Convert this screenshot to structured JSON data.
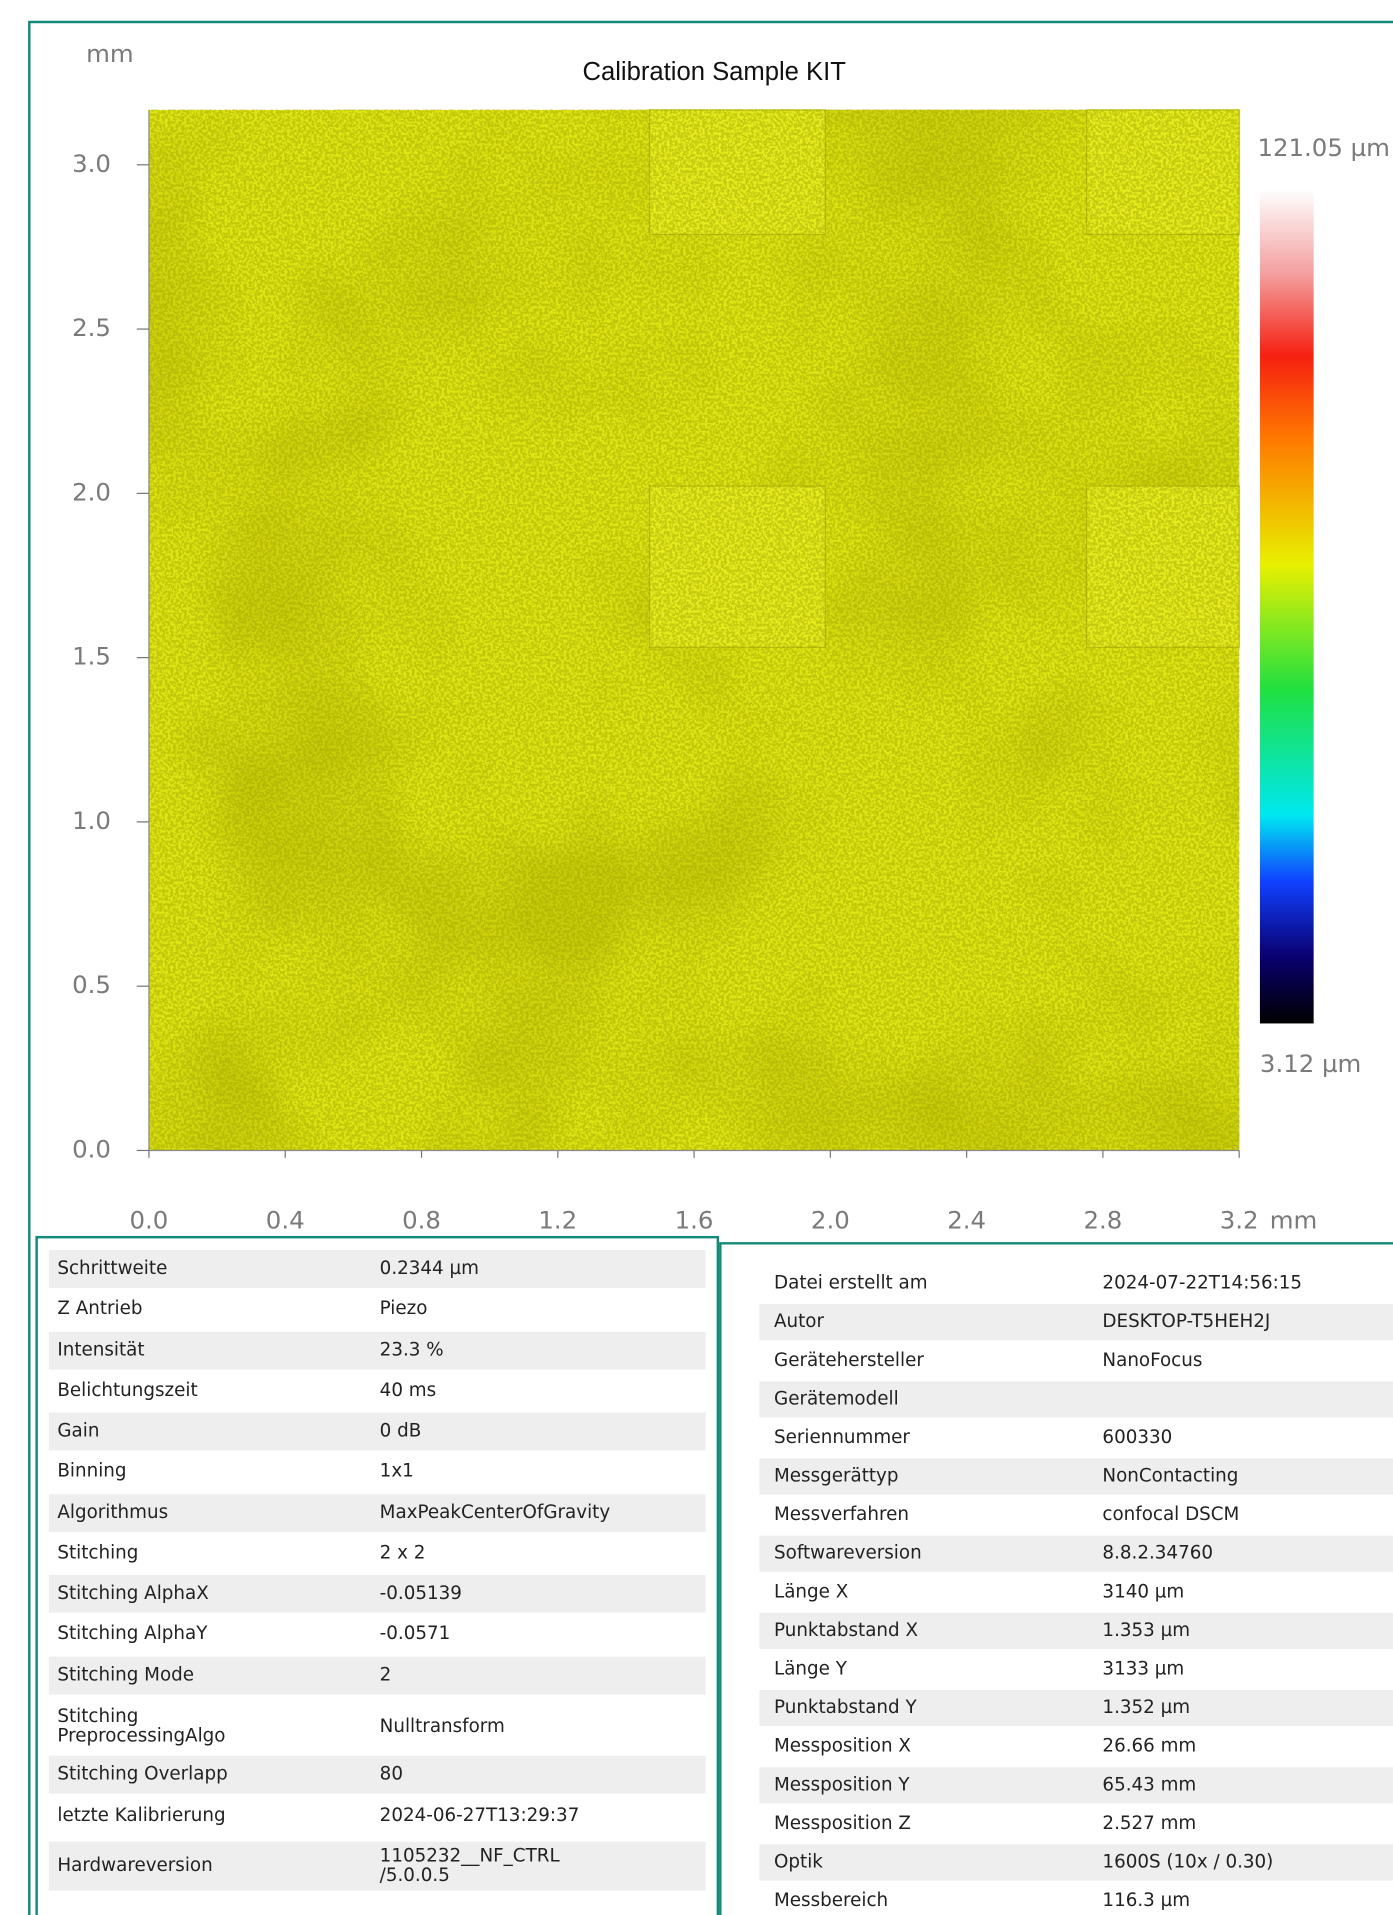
{
  "plot": {
    "title": "Calibration Sample KIT",
    "y_unit": "mm",
    "x_unit": "mm",
    "xlim": [
      0,
      3.2
    ],
    "ylim": [
      0,
      3.167
    ],
    "xticks": [
      {
        "value": 0,
        "label": "0.0"
      },
      {
        "value": 0.4,
        "label": "0.4"
      },
      {
        "value": 0.8,
        "label": "0.8"
      },
      {
        "value": 1.2,
        "label": "1.2"
      },
      {
        "value": 1.6,
        "label": "1.6"
      },
      {
        "value": 2,
        "label": "2.0"
      },
      {
        "value": 2.4,
        "label": "2.4"
      },
      {
        "value": 2.8,
        "label": "2.8"
      },
      {
        "value": 3.2,
        "label": "3.2"
      }
    ],
    "yticks": [
      {
        "value": 0,
        "label": "0.0"
      },
      {
        "value": 0.5,
        "label": "0.5"
      },
      {
        "value": 1,
        "label": "1.0"
      },
      {
        "value": 1.5,
        "label": "1.5"
      },
      {
        "value": 2,
        "label": "2.0"
      },
      {
        "value": 2.5,
        "label": "2.5"
      },
      {
        "value": 3,
        "label": "3.0"
      }
    ],
    "colorbar": {
      "max": "121.05 µm",
      "min": "3.12 µm"
    }
  },
  "left_table": {
    "rows": [
      [
        "Schrittweite",
        "0.2344 µm"
      ],
      [
        "Z Antrieb",
        "Piezo"
      ],
      [
        "Intensität",
        "23.3 %"
      ],
      [
        "Belichtungszeit",
        "40 ms"
      ],
      [
        "Gain",
        "0 dB"
      ],
      [
        "Binning",
        "1x1"
      ],
      [
        "Algorithmus",
        "MaxPeakCenterOfGravity"
      ],
      [
        "Stitching",
        "2 x 2"
      ],
      [
        "Stitching AlphaX",
        "-0.05139"
      ],
      [
        "Stitching AlphaY",
        "-0.0571"
      ],
      [
        "Stitching Mode",
        "2"
      ],
      [
        [
          "Stitching",
          "PreprocessingAlgo"
        ],
        "Nulltransform"
      ],
      [
        "Stitching Overlapp",
        "80"
      ],
      [
        "letzte Kalibrierung",
        "2024-06-27T13:29:37"
      ],
      [
        "Hardwareversion",
        [
          "1105232__NF_CTRL",
          "/5.0.0.5"
        ]
      ]
    ]
  },
  "right_table": {
    "rows": [
      [
        "Datei erstellt am",
        "2024-07-22T14:56:15"
      ],
      [
        "Autor",
        "DESKTOP-T5HEH2J"
      ],
      [
        "Gerätehersteller",
        "NanoFocus"
      ],
      [
        "Gerätemodell",
        null
      ],
      [
        "Seriennummer",
        "600330"
      ],
      [
        "Messgerättyp",
        "NonContacting"
      ],
      [
        "Messverfahren",
        "confocal DSCM"
      ],
      [
        "Softwareversion",
        "8.8.2.34760"
      ],
      [
        "Länge X",
        "3140 µm"
      ],
      [
        "Punktabstand X",
        "1.353 µm"
      ],
      [
        "Länge Y",
        "3133 µm"
      ],
      [
        "Punktabstand Y",
        "1.352 µm"
      ],
      [
        "Messposition X",
        "26.66 mm"
      ],
      [
        "Messposition Y",
        "65.43 mm"
      ],
      [
        "Messposition Z",
        "2.527 mm"
      ],
      [
        "Optik",
        "1600S (10x / 0.30)"
      ],
      [
        "Messbereich",
        "116.3 µm"
      ]
    ]
  }
}
